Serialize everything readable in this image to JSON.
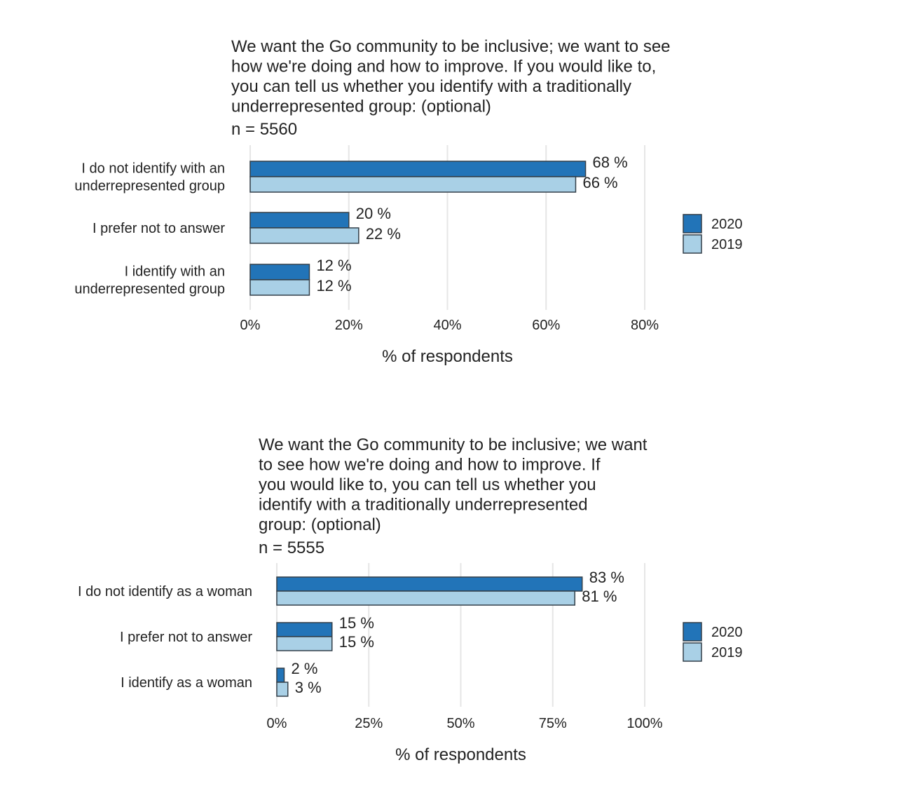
{
  "chart_data": [
    {
      "type": "bar",
      "orientation": "horizontal",
      "title": [
        "We want the Go community to be inclusive; we want to see",
        "how we're doing and how to improve. If you would like to,",
        "you can tell us whether you identify with a traditionally",
        "underrepresented group: (optional)"
      ],
      "subtitle": "n = 5560",
      "categories": [
        [
          "I do not identify with an",
          "underrepresented group"
        ],
        [
          "I prefer not to answer"
        ],
        [
          "I identify with an",
          "underrepresented group"
        ]
      ],
      "series": [
        {
          "name": "2020",
          "values": [
            68,
            20,
            12
          ],
          "labels": [
            "68 %",
            "20 %",
            "12 %"
          ]
        },
        {
          "name": "2019",
          "values": [
            66,
            22,
            12
          ],
          "labels": [
            "66 %",
            "22 %",
            "12 %"
          ]
        }
      ],
      "xlabel": "% of respondents",
      "xlim": [
        0,
        80
      ],
      "ticks": [
        0,
        20,
        40,
        60,
        80
      ],
      "tick_labels": [
        "0%",
        "20%",
        "40%",
        "60%",
        "80%"
      ],
      "grid": true,
      "legend": "right"
    },
    {
      "type": "bar",
      "orientation": "horizontal",
      "title": [
        "We want the Go community to be inclusive; we want",
        "to see how we're doing and how to improve. If",
        "you would like to, you can tell us whether you",
        "identify with a traditionally underrepresented",
        "group: (optional)"
      ],
      "subtitle": "n = 5555",
      "categories": [
        [
          "I do not identify as a woman"
        ],
        [
          "I prefer not to answer"
        ],
        [
          "I identify as a woman"
        ]
      ],
      "series": [
        {
          "name": "2020",
          "values": [
            83,
            15,
            2
          ],
          "labels": [
            "83 %",
            "15 %",
            "2 %"
          ]
        },
        {
          "name": "2019",
          "values": [
            81,
            15,
            3
          ],
          "labels": [
            "81 %",
            "15 %",
            "3 %"
          ]
        }
      ],
      "xlabel": "% of respondents",
      "xlim": [
        0,
        100
      ],
      "ticks": [
        0,
        25,
        50,
        75,
        100
      ],
      "tick_labels": [
        "0%",
        "25%",
        "50%",
        "75%",
        "100%"
      ],
      "grid": true,
      "legend": "right"
    }
  ],
  "colors": {
    "2020": "#2274b8",
    "2019": "#a9d0e6",
    "bar_stroke": "#333f48",
    "grid": "#e6e6e6",
    "text": "#222222"
  }
}
